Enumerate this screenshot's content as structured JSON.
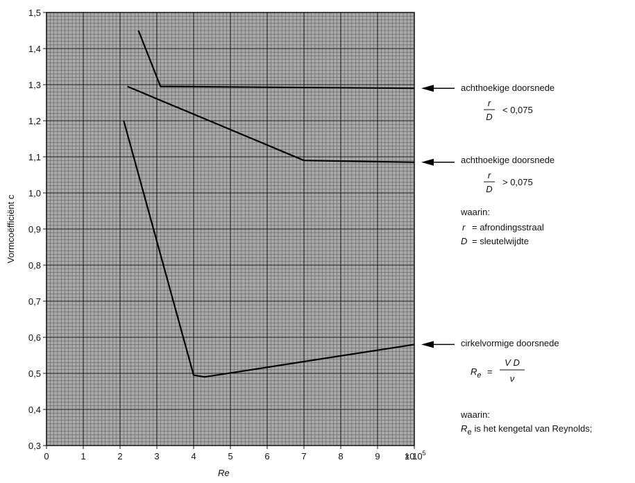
{
  "chart_data": {
    "type": "line",
    "xlabel": "Re",
    "x_multiplier": "× 10",
    "x_exponent": "5",
    "ylabel": "Vormcoëfficiënt  c",
    "xlim": [
      0,
      10
    ],
    "ylim": [
      0.3,
      1.5
    ],
    "x_ticks": [
      0,
      1,
      2,
      3,
      4,
      5,
      6,
      7,
      8,
      9,
      10
    ],
    "x_tick_labels": [
      "0",
      "1",
      "2",
      "3",
      "4",
      "5",
      "6",
      "7",
      "8",
      "9",
      "10"
    ],
    "y_ticks": [
      0.3,
      0.4,
      0.5,
      0.6,
      0.7,
      0.8,
      0.9,
      1.0,
      1.1,
      1.2,
      1.3,
      1.4,
      1.5
    ],
    "y_tick_labels": [
      "0,3",
      "0,4",
      "0,5",
      "0,6",
      "0,7",
      "0,8",
      "0,9",
      "1,0",
      "1,1",
      "1,2",
      "1,3",
      "1,4",
      "1,5"
    ],
    "grid": true,
    "series": [
      {
        "points": [
          [
            2.5,
            1.45
          ],
          [
            3.1,
            1.295
          ],
          [
            10,
            1.29
          ]
        ]
      },
      {
        "points": [
          [
            2.2,
            1.295
          ],
          [
            7.0,
            1.09
          ],
          [
            10,
            1.085
          ]
        ]
      },
      {
        "points": [
          [
            2.1,
            1.2
          ],
          [
            4.0,
            0.495
          ],
          [
            4.3,
            0.49
          ],
          [
            10,
            0.58
          ]
        ]
      }
    ],
    "annotations": [
      {
        "y": 1.29,
        "title": "achthoekige doorsnede",
        "frac_num": "r",
        "frac_den": "D",
        "relation": "< 0,075"
      },
      {
        "y": 1.085,
        "title": "achthoekige doorsnede",
        "frac_num": "r",
        "frac_den": "D",
        "relation": "> 0,075"
      },
      {
        "y": 0.58,
        "title": "cirkelvormige doorsnede"
      }
    ],
    "legend_text": {
      "waarin1": "waarin:",
      "r_sym": "r",
      "r_def": "=  afrondingsstraal",
      "d_sym": "D",
      "d_def": "=  sleutelwijdte",
      "formula_lhs": "R",
      "formula_sub": "e",
      "formula_eq": "=",
      "formula_num": "V D",
      "formula_den": "ν",
      "waarin2": "waarin:",
      "re_sym": "R",
      "re_sub": "e",
      "re_def": "is het kengetal van Reynolds;"
    }
  }
}
